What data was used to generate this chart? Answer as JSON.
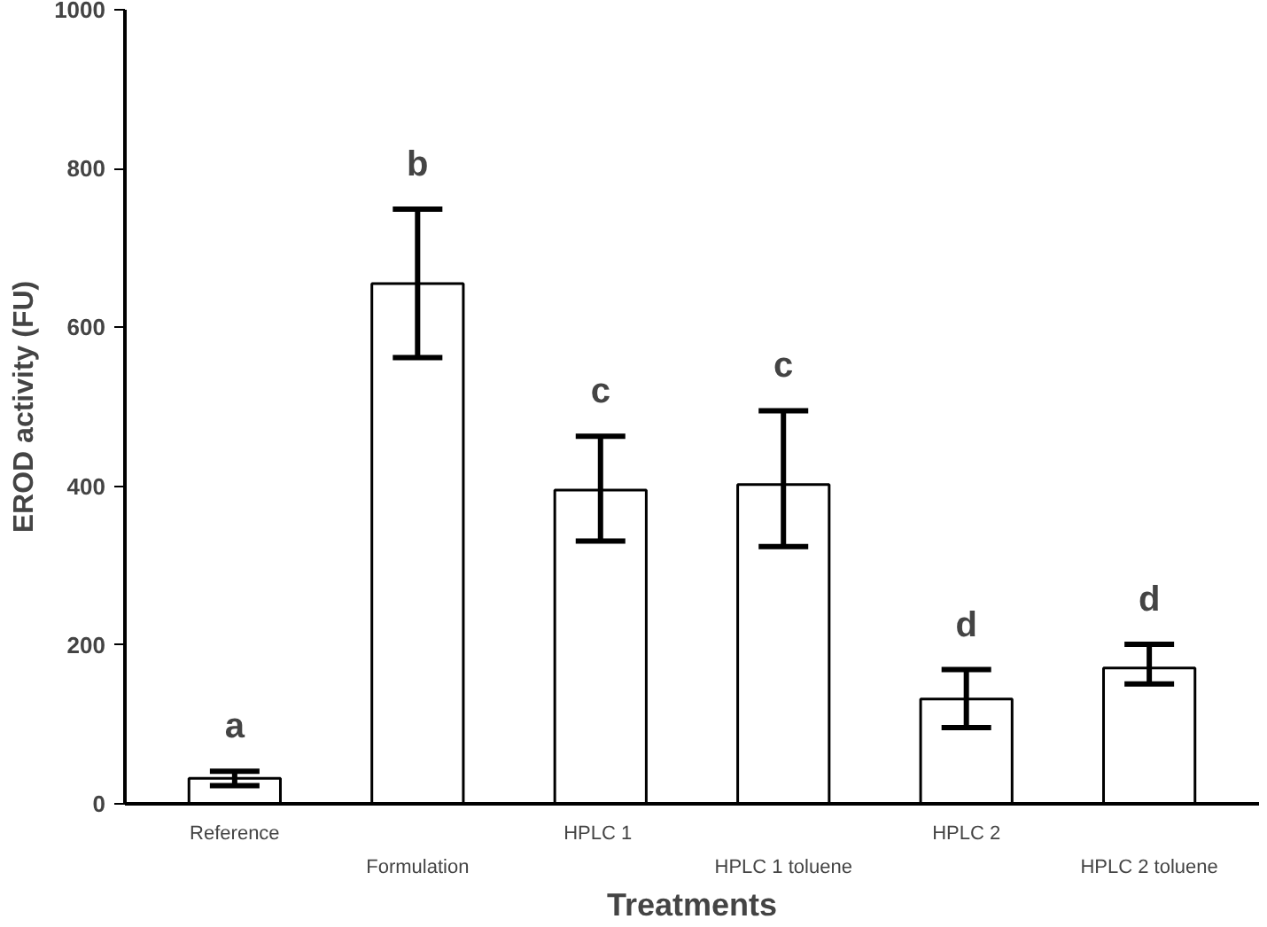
{
  "chart_data": {
    "type": "bar",
    "xlabel": "Treatments",
    "ylabel": "EROD activity (FU)",
    "categories": [
      "Reference",
      "Formulation",
      "HPLC  1",
      "HPLC 1 toluene",
      "HPLC 2",
      "HPLC 2 toluene"
    ],
    "values": [
      32,
      655,
      395,
      402,
      132,
      171
    ],
    "color": "#ffffff",
    "errors": [
      [
        23,
        41
      ],
      [
        562,
        749
      ],
      [
        331,
        463
      ],
      [
        324,
        495
      ],
      [
        96,
        169
      ],
      [
        151,
        201
      ]
    ],
    "ylim": [
      0,
      1000
    ],
    "yticks": [
      0,
      200,
      400,
      600,
      800,
      1000
    ],
    "grid": false,
    "annotations": [
      {
        "text": "a",
        "x": "Reference",
        "y": 41
      },
      {
        "text": "b",
        "x": "Formulation",
        "y": 749
      },
      {
        "text": "c",
        "x": "HPLC  1",
        "y": 463
      },
      {
        "text": "c",
        "x": "HPLC 1 toluene",
        "y": 495
      },
      {
        "text": "d",
        "x": "HPLC 2",
        "y": 169
      },
      {
        "text": "d",
        "x": "HPLC 2 toluene",
        "y": 201
      }
    ]
  }
}
